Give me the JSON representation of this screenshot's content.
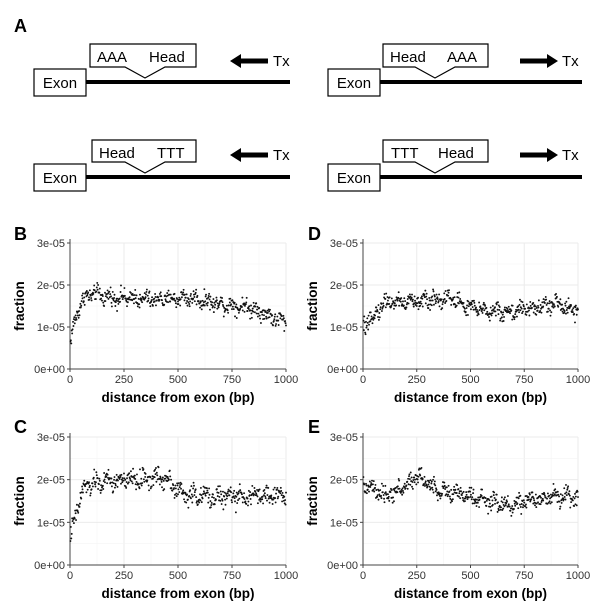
{
  "panels": {
    "A": "A",
    "B": "B",
    "C": "C",
    "D": "D",
    "E": "E"
  },
  "schematics": [
    {
      "id": "s1",
      "exon": "Exon",
      "box_left": "AAA",
      "box_right": "Head",
      "arrow": "left",
      "tx": "Tx"
    },
    {
      "id": "s2",
      "exon": "Exon",
      "box_left": "Head",
      "box_right": "AAA",
      "arrow": "right",
      "tx": "Tx"
    },
    {
      "id": "s3",
      "exon": "Exon",
      "box_left": "Head",
      "box_right": "TTT",
      "arrow": "left",
      "tx": "Tx"
    },
    {
      "id": "s4",
      "exon": "Exon",
      "box_left": "TTT",
      "box_right": "Head",
      "arrow": "right",
      "tx": "Tx"
    }
  ],
  "chart_data": [
    {
      "panel": "B",
      "type": "scatter",
      "xlabel": "distance from exon (bp)",
      "ylabel": "fraction",
      "xlim": [
        0,
        1000
      ],
      "ylim": [
        0,
        3e-05
      ],
      "xticks": [
        0,
        250,
        500,
        750,
        1000
      ],
      "yticks": [
        0,
        1e-05,
        2e-05,
        3e-05
      ],
      "ytick_labels": [
        "0e+00",
        "1e-05",
        "2e-05",
        "3e-05"
      ],
      "grid": true,
      "points_per_series": 500,
      "trend": [
        [
          0,
          5.5e-06
        ],
        [
          20,
          1.1e-05
        ],
        [
          50,
          1.6e-05
        ],
        [
          100,
          1.8e-05
        ],
        [
          200,
          1.7e-05
        ],
        [
          400,
          1.65e-05
        ],
        [
          550,
          1.7e-05
        ],
        [
          700,
          1.55e-05
        ],
        [
          850,
          1.45e-05
        ],
        [
          950,
          1.2e-05
        ],
        [
          1000,
          1.1e-05
        ]
      ],
      "spread": 2.2e-06
    },
    {
      "panel": "C",
      "type": "scatter",
      "xlabel": "distance from exon (bp)",
      "ylabel": "fraction",
      "xlim": [
        0,
        1000
      ],
      "ylim": [
        0,
        3e-05
      ],
      "xticks": [
        0,
        250,
        500,
        750,
        1000
      ],
      "yticks": [
        0,
        1e-05,
        2e-05,
        3e-05
      ],
      "ytick_labels": [
        "0e+00",
        "1e-05",
        "2e-05",
        "3e-05"
      ],
      "grid": true,
      "points_per_series": 500,
      "trend": [
        [
          0,
          5.5e-06
        ],
        [
          25,
          1.2e-05
        ],
        [
          70,
          1.85e-05
        ],
        [
          150,
          1.95e-05
        ],
        [
          300,
          2e-05
        ],
        [
          450,
          2.05e-05
        ],
        [
          520,
          1.65e-05
        ],
        [
          650,
          1.6e-05
        ],
        [
          800,
          1.6e-05
        ],
        [
          1000,
          1.65e-05
        ]
      ],
      "spread": 2.5e-06
    },
    {
      "panel": "D",
      "type": "scatter",
      "xlabel": "distance from exon (bp)",
      "ylabel": "fraction",
      "xlim": [
        0,
        1000
      ],
      "ylim": [
        0,
        3e-05
      ],
      "xticks": [
        0,
        250,
        500,
        750,
        1000
      ],
      "yticks": [
        0,
        1e-05,
        2e-05,
        3e-05
      ],
      "ytick_labels": [
        "0e+00",
        "1e-05",
        "2e-05",
        "3e-05"
      ],
      "grid": true,
      "points_per_series": 500,
      "trend": [
        [
          0,
          9.5e-06
        ],
        [
          40,
          1.2e-05
        ],
        [
          100,
          1.6e-05
        ],
        [
          250,
          1.6e-05
        ],
        [
          400,
          1.7e-05
        ],
        [
          500,
          1.45e-05
        ],
        [
          650,
          1.35e-05
        ],
        [
          800,
          1.45e-05
        ],
        [
          900,
          1.55e-05
        ],
        [
          1000,
          1.4e-05
        ]
      ],
      "spread": 2.2e-06
    },
    {
      "panel": "E",
      "type": "scatter",
      "xlabel": "distance from exon (bp)",
      "ylabel": "fraction",
      "xlim": [
        0,
        1000
      ],
      "ylim": [
        0,
        3e-05
      ],
      "xticks": [
        0,
        250,
        500,
        750,
        1000
      ],
      "yticks": [
        0,
        1e-05,
        2e-05,
        3e-05
      ],
      "ytick_labels": [
        "0e+00",
        "1e-05",
        "2e-05",
        "3e-05"
      ],
      "grid": true,
      "points_per_series": 500,
      "trend": [
        [
          0,
          1.9e-05
        ],
        [
          100,
          1.6e-05
        ],
        [
          200,
          1.85e-05
        ],
        [
          250,
          2.1e-05
        ],
        [
          350,
          1.75e-05
        ],
        [
          500,
          1.6e-05
        ],
        [
          600,
          1.45e-05
        ],
        [
          700,
          1.4e-05
        ],
        [
          850,
          1.6e-05
        ],
        [
          1000,
          1.6e-05
        ]
      ],
      "spread": 2.2e-06
    }
  ]
}
